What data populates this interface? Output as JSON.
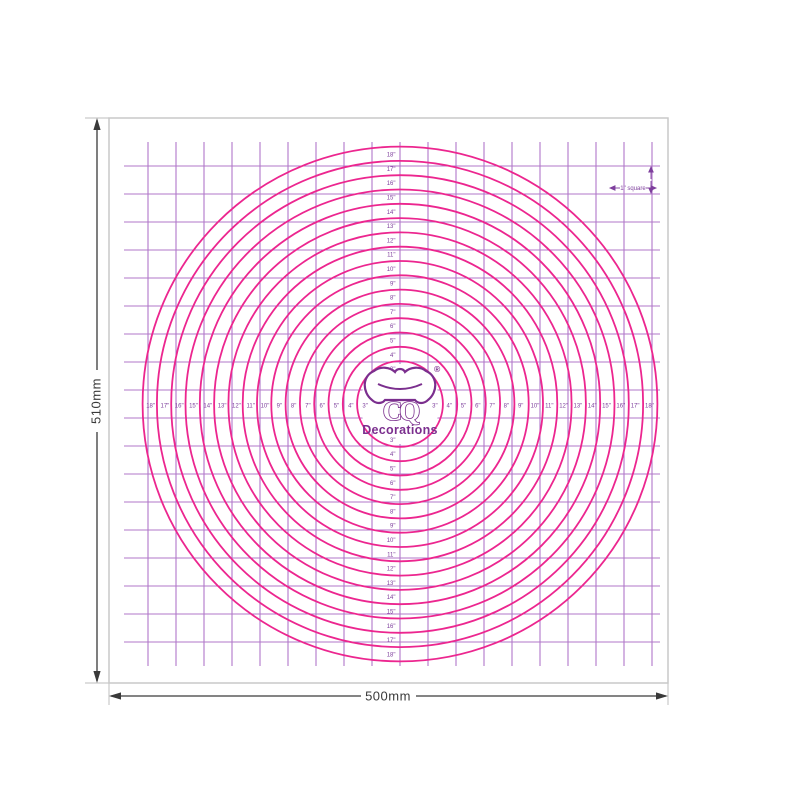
{
  "product": {
    "type_hint": "round cake decorating measuring mat diagram",
    "colors": {
      "circle_pink": "#ec268f",
      "grid_purple": "#b177c9",
      "axis_text_purple": "#7e3f9d",
      "logo_purple": "#7b2f8e",
      "dimension_gray": "#3a3a3a",
      "mat_border_gray": "#c9c9c9"
    }
  },
  "dims": {
    "width_label": "500mm",
    "height_label": "510mm"
  },
  "annotation": {
    "square_label": "1\" square"
  },
  "logo": {
    "monogram": "CQ",
    "wordmark": "Decorations",
    "registered": "®"
  },
  "circles": {
    "diameters_inches": [
      3,
      4,
      5,
      6,
      7,
      8,
      9,
      10,
      11,
      12,
      13,
      14,
      15,
      16,
      17,
      18
    ],
    "unit_mark": "\""
  }
}
